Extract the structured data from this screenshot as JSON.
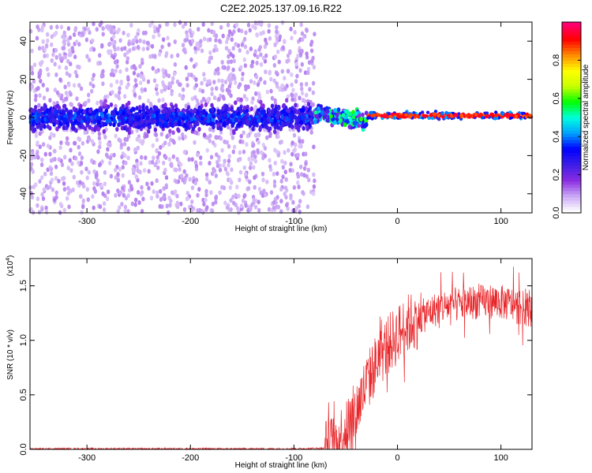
{
  "chart_data": [
    {
      "type": "heatmap",
      "title": "C2E2.2025.137.09.16.R22",
      "xlabel": "Height of straight line (km)",
      "ylabel": "Frequency (Hz)",
      "xlim": [
        -355,
        130
      ],
      "ylim": [
        -50,
        50
      ],
      "xticks": [
        -300,
        -200,
        -100,
        0,
        100
      ],
      "yticks": [
        -40,
        -20,
        0,
        20,
        40
      ],
      "colorbar": {
        "label": "Normalized spectral amplitude",
        "range": [
          0.0,
          1.0
        ],
        "ticks": [
          0.0,
          0.2,
          0.4,
          0.6,
          0.8
        ],
        "colormap": [
          "#ffffff",
          "#c9a6f5",
          "#8a2be2",
          "#3c1ee6",
          "#0000ff",
          "#00a0ff",
          "#00ffe0",
          "#00ff00",
          "#c8ff00",
          "#ffff00",
          "#ff8c00",
          "#ff0000",
          "#ff0070"
        ]
      },
      "regions": [
        {
          "x_range": [
            -355,
            -80
          ],
          "freq_center": 0,
          "broadband_spread_hz": 50,
          "core_band_hz": [
            -10,
            12
          ],
          "typical_amplitude": 0.2
        },
        {
          "x_range": [
            -80,
            -30
          ],
          "freq_center": 2,
          "core_band_hz": [
            -12,
            8
          ],
          "typical_amplitude": 0.5
        },
        {
          "x_range": [
            -30,
            130
          ],
          "freq_center": 1,
          "core_band_hz": [
            -3,
            3
          ],
          "typical_amplitude": 0.95
        }
      ],
      "grid": false
    },
    {
      "type": "line",
      "xlabel": "Height of straight line (km)",
      "ylabel": "SNR (10 * v/v)",
      "y_multiplier": "(x10",
      "y_multiplier_exp": "4",
      "y_multiplier_close": ")",
      "xlim": [
        -355,
        130
      ],
      "ylim": [
        0,
        1.75
      ],
      "xticks": [
        -300,
        -200,
        -100,
        0,
        100
      ],
      "yticks": [
        0.0,
        0.5,
        1.0,
        1.5
      ],
      "color": "#e8262a",
      "series": [
        {
          "x": [
            -355,
            -300,
            -250,
            -200,
            -150,
            -100,
            -70,
            -60,
            -50,
            -40,
            -30,
            -20,
            -10,
            0,
            10,
            20,
            30,
            40,
            50,
            60,
            70,
            80,
            90,
            100,
            110,
            120,
            130
          ],
          "y": [
            0.005,
            0.005,
            0.005,
            0.005,
            0.005,
            0.005,
            0.01,
            0.05,
            0.2,
            0.35,
            0.6,
            0.8,
            0.95,
            1.05,
            1.15,
            1.2,
            1.25,
            1.3,
            1.32,
            1.33,
            1.35,
            1.35,
            1.36,
            1.35,
            1.33,
            1.3,
            1.28
          ]
        }
      ],
      "grid": false
    }
  ]
}
